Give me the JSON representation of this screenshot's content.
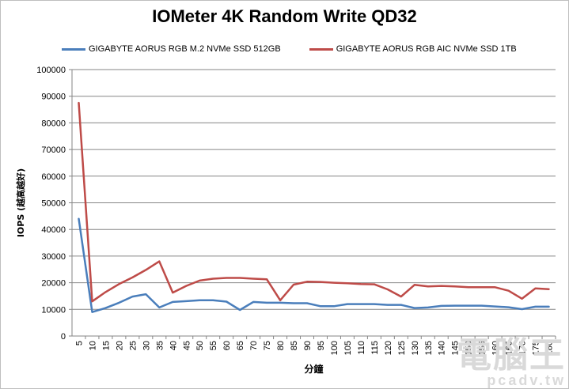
{
  "chart_data": {
    "type": "line",
    "title": "IOMeter 4K Random Write QD32",
    "xlabel": "分鐘",
    "ylabel": "IOPS (越高越好)",
    "ylim": [
      0,
      100000
    ],
    "yticks": [
      0,
      10000,
      20000,
      30000,
      40000,
      50000,
      60000,
      70000,
      80000,
      90000,
      100000
    ],
    "grid": "horizontal",
    "legend_position": "top",
    "x": [
      5,
      10,
      15,
      20,
      25,
      30,
      35,
      40,
      45,
      50,
      55,
      60,
      65,
      70,
      75,
      80,
      85,
      90,
      95,
      100,
      105,
      110,
      115,
      120,
      125,
      130,
      135,
      140,
      145,
      150,
      155,
      160,
      165,
      170,
      175,
      180
    ],
    "series": [
      {
        "name": "GIGABYTE AORUS RGB M.2 NVMe SSD 512GB",
        "color": "#4a7ebb",
        "values": [
          44000,
          9000,
          10500,
          12500,
          14800,
          15700,
          10700,
          12800,
          13100,
          13400,
          13400,
          12900,
          9800,
          12800,
          12500,
          12500,
          12300,
          12300,
          11200,
          11200,
          12000,
          12000,
          12000,
          11700,
          11700,
          10500,
          10700,
          11300,
          11400,
          11400,
          11400,
          11100,
          10800,
          10100,
          11000,
          11000
        ]
      },
      {
        "name": "GIGABYTE AORUS RGB AIC NVMe SSD 1TB",
        "color": "#be4b48",
        "values": [
          87500,
          13000,
          16500,
          19500,
          22000,
          24800,
          28000,
          16300,
          18800,
          20800,
          21500,
          21800,
          21800,
          21500,
          21300,
          13400,
          19300,
          20400,
          20300,
          20000,
          19800,
          19500,
          19400,
          17500,
          14800,
          19200,
          18600,
          18800,
          18600,
          18300,
          18300,
          18300,
          17000,
          14000,
          17900,
          17600
        ]
      }
    ]
  },
  "watermark": {
    "main": "電腦王",
    "sub": "pcadv.tw"
  }
}
